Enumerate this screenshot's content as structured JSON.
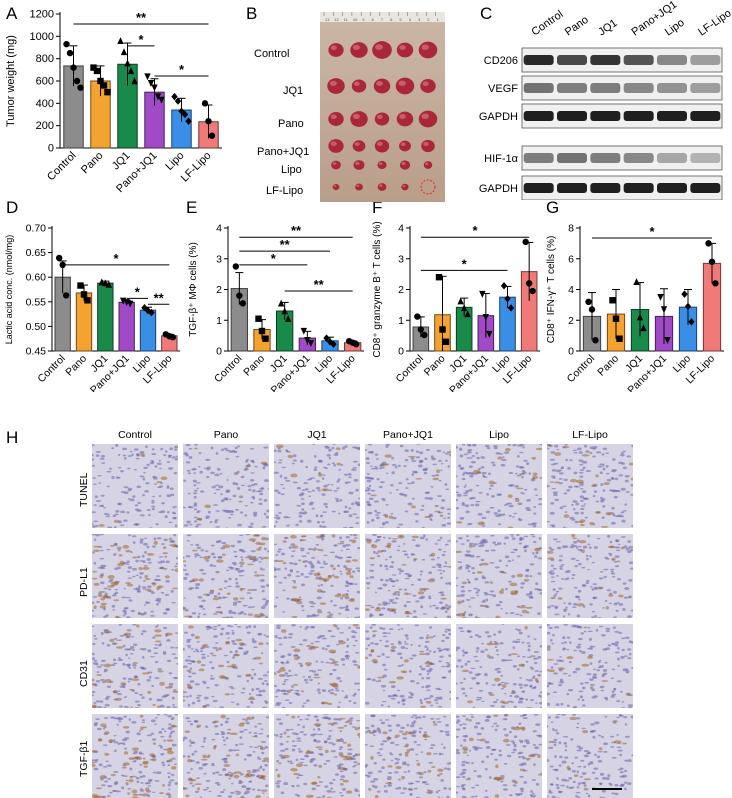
{
  "panels": [
    "A",
    "B",
    "C",
    "D",
    "E",
    "F",
    "G",
    "H"
  ],
  "groups": [
    "Control",
    "Pano",
    "JQ1",
    "Pano+JQ1",
    "Lipo",
    "LF-Lipo"
  ],
  "colors": [
    "#8c8c8c",
    "#f5a330",
    "#1a8a4a",
    "#a04ac8",
    "#3b8ee6",
    "#f07a78"
  ],
  "chart_data": [
    {
      "panel": "A",
      "type": "bar",
      "ylabel": "Tumor weight (mg)",
      "ylim": [
        0,
        1200
      ],
      "yticks": [
        0,
        200,
        400,
        600,
        800,
        1000,
        1200
      ],
      "categories": [
        "Control",
        "Pano",
        "JQ1",
        "Pano+JQ1",
        "Lipo",
        "LF-Lipo"
      ],
      "values": [
        735,
        600,
        750,
        500,
        340,
        235
      ],
      "errors": [
        180,
        135,
        190,
        120,
        105,
        150
      ],
      "points": [
        [
          930,
          850,
          720,
          600,
          540
        ],
        [
          720,
          690,
          600,
          560,
          500
        ],
        [
          960,
          860,
          760,
          690,
          600
        ],
        [
          640,
          580,
          540,
          460,
          430
        ],
        [
          460,
          420,
          330,
          300,
          240
        ],
        [
          400,
          240,
          110
        ]
      ],
      "significance": [
        {
          "from": 0,
          "to": 5,
          "label": "**",
          "y": 1110
        },
        {
          "from": 2,
          "to": 3,
          "label": "*",
          "y": 915
        },
        {
          "from": 3,
          "to": 5,
          "label": "*",
          "y": 645
        }
      ]
    },
    {
      "panel": "D",
      "type": "bar",
      "ylabel": "Lactic acid conc. (nmol/mg)",
      "ylim": [
        0.45,
        0.7
      ],
      "yticks": [
        "0.45",
        "0.50",
        "0.55",
        "0.60",
        "0.65",
        "0.70"
      ],
      "categories": [
        "Control",
        "Pano",
        "JQ1",
        "Pano+JQ1",
        "Lipo",
        "LF-Lipo"
      ],
      "values": [
        0.6,
        0.568,
        0.588,
        0.549,
        0.533,
        0.481
      ],
      "errors": [
        0.033,
        0.016,
        0.004,
        0.004,
        0.006,
        0.003
      ],
      "points": [
        [
          0.639,
          0.625,
          0.563
        ],
        [
          0.583,
          0.565,
          0.553
        ],
        [
          0.59,
          0.588,
          0.585
        ],
        [
          0.552,
          0.549,
          0.546
        ],
        [
          0.538,
          0.532,
          0.528
        ],
        [
          0.484,
          0.48,
          0.478
        ]
      ],
      "significance": [
        {
          "from": 0,
          "to": 5,
          "label": "*",
          "y": 0.625
        },
        {
          "from": 3,
          "to": 4,
          "label": "*",
          "y": 0.557
        },
        {
          "from": 4,
          "to": 5,
          "label": "**",
          "y": 0.545
        }
      ]
    },
    {
      "panel": "E",
      "type": "bar",
      "ylabel": "TGF-β⁺ MΦ cells (%)",
      "ylim": [
        0,
        4
      ],
      "yticks": [
        0,
        1,
        2,
        3,
        4
      ],
      "categories": [
        "Control",
        "Pano",
        "JQ1",
        "Pano+JQ1",
        "Lipo",
        "LF-Lipo"
      ],
      "values": [
        2.03,
        0.7,
        1.3,
        0.42,
        0.33,
        0.27
      ],
      "errors": [
        0.52,
        0.32,
        0.28,
        0.22,
        0.12,
        0.06
      ],
      "points": [
        [
          2.75,
          1.8,
          1.55
        ],
        [
          1.05,
          0.65,
          0.4
        ],
        [
          1.55,
          1.3,
          1.05
        ],
        [
          0.65,
          0.35,
          0.25
        ],
        [
          0.42,
          0.3,
          0.22
        ],
        [
          0.32,
          0.27,
          0.22
        ]
      ],
      "significance": [
        {
          "from": 0,
          "to": 5,
          "label": "**",
          "y": 3.7
        },
        {
          "from": 0,
          "to": 4,
          "label": "**",
          "y": 3.25
        },
        {
          "from": 0,
          "to": 3,
          "label": "*",
          "y": 2.8
        },
        {
          "from": 2,
          "to": 5,
          "label": "**",
          "y": 1.95
        }
      ]
    },
    {
      "panel": "F",
      "type": "bar",
      "ylabel": "CD8⁺ granzyme B⁺ T cells (%)",
      "ylim": [
        0,
        4
      ],
      "yticks": [
        0,
        1,
        2,
        3,
        4
      ],
      "categories": [
        "Control",
        "Pano",
        "JQ1",
        "Pano+JQ1",
        "Lipo",
        "LF-Lipo"
      ],
      "values": [
        0.78,
        1.18,
        1.42,
        1.15,
        1.75,
        2.58
      ],
      "errors": [
        0.33,
        1.25,
        0.3,
        0.72,
        0.35,
        0.95
      ],
      "points": [
        [
          1.12,
          0.7,
          0.52
        ],
        [
          2.4,
          0.7,
          0.3
        ],
        [
          1.62,
          1.4,
          1.2
        ],
        [
          1.85,
          1.1,
          0.55
        ],
        [
          2.12,
          1.7,
          1.4
        ],
        [
          3.55,
          2.2,
          1.95
        ]
      ],
      "significance": [
        {
          "from": 0,
          "to": 5,
          "label": "*",
          "y": 3.7
        },
        {
          "from": 0,
          "to": 4,
          "label": "*",
          "y": 2.62
        }
      ]
    },
    {
      "panel": "G",
      "type": "bar",
      "ylabel": "CD8⁺ IFN-γ⁺ T cells (%)",
      "ylim": [
        0,
        8
      ],
      "yticks": [
        0,
        2,
        4,
        6,
        8
      ],
      "categories": [
        "Control",
        "Pano",
        "JQ1",
        "Pano+JQ1",
        "Lipo",
        "LF-Lipo"
      ],
      "values": [
        2.25,
        2.4,
        2.7,
        2.25,
        2.85,
        5.7
      ],
      "errors": [
        1.55,
        1.6,
        1.75,
        1.8,
        1.15,
        1.3
      ],
      "points": [
        [
          3.2,
          2.7,
          0.7
        ],
        [
          3.3,
          2.1,
          0.8
        ],
        [
          4.5,
          2.2,
          1.5
        ],
        [
          3.5,
          2.7,
          0.7
        ],
        [
          3.7,
          2.9,
          1.9
        ],
        [
          7.0,
          5.8,
          4.4
        ]
      ],
      "significance": [
        {
          "from": 0,
          "to": 5,
          "label": "*",
          "y": 7.35
        }
      ]
    }
  ],
  "photo_b": {
    "ruler_marks": [
      "13",
      "12",
      "11",
      "10",
      "9",
      "8",
      "7",
      "6",
      "5",
      "4",
      "3",
      "2",
      "1"
    ],
    "rows": [
      "Control",
      "JQ1",
      "Pano",
      "Pano+JQ1",
      "Lipo",
      "LF-Lipo"
    ]
  },
  "blot_c": {
    "lanes": [
      "Control",
      "Pano",
      "JQ1",
      "Pano+JQ1",
      "Lipo",
      "LF-Lipo"
    ],
    "rows": [
      "CD206",
      "VEGF",
      "GAPDH",
      "HIF-1α",
      "GAPDH"
    ]
  },
  "histology_h": {
    "columns": [
      "Control",
      "Pano",
      "JQ1",
      "Pano+JQ1",
      "Lipo",
      "LF-Lipo"
    ],
    "rows": [
      "TUNEL",
      "PD-L1",
      "CD31",
      "TGF-β1"
    ]
  }
}
